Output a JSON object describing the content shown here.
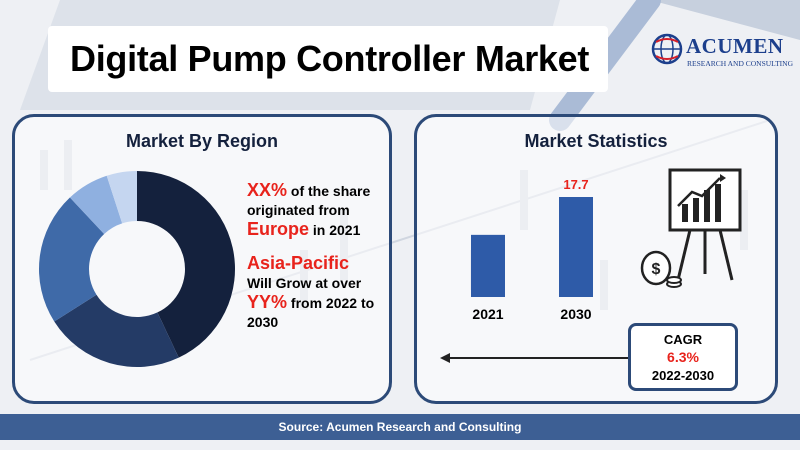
{
  "header": {
    "title": "Digital Pump Controller Market",
    "logo_text": "ACUMEN",
    "logo_sub": "RESEARCH AND CONSULTING"
  },
  "region_panel": {
    "title": "Market By Region",
    "line1_highlight": "XX%",
    "line1_rest": " of the share originated from",
    "line2_highlight": "Europe",
    "line2_rest": " in 2021",
    "line3_highlight": "Asia-Pacific",
    "line4": "Will Grow at over",
    "line5_highlight": "YY%",
    "line5_rest": " from 2022 to 2030"
  },
  "stats_panel": {
    "title": "Market Statistics",
    "cagr_label": "CAGR",
    "cagr_value": "6.3%",
    "cagr_period": "2022-2030"
  },
  "footer": {
    "source": "Source: Acumen Research and Consulting"
  },
  "colors": {
    "navy": "#14213d",
    "blue": "#2c4a78",
    "mid_blue": "#3f6aa8",
    "light_blue": "#8fb0e0",
    "pale_blue": "#c5d6f0",
    "bar_blue": "#2e5ba8",
    "accent_red": "#e8231c"
  },
  "chart_data": [
    {
      "type": "pie",
      "title": "Market By Region",
      "values": [
        43,
        23,
        22,
        7,
        5
      ],
      "colors": [
        "#14213d",
        "#243b66",
        "#3f6aa8",
        "#8fb0e0",
        "#c5d6f0"
      ]
    },
    {
      "type": "bar",
      "title": "Market Statistics",
      "categories": [
        "2021",
        "2030"
      ],
      "values": [
        11.0,
        17.7
      ],
      "data_labels": [
        "",
        "17.7"
      ]
    }
  ]
}
